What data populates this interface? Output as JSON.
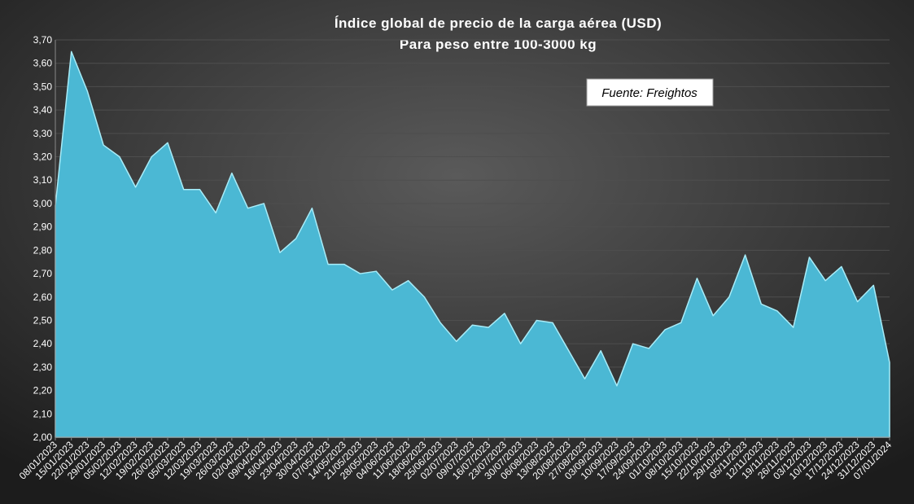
{
  "chart_data": {
    "type": "area",
    "title": "Índice global de precio de la carga aérea (USD)",
    "subtitle": "Para peso entre 100-3000 kg",
    "annotation": "Fuente: Freightos",
    "categories": [
      "08/01/2023",
      "15/01/2023",
      "22/01/2023",
      "29/01/2023",
      "05/02/2023",
      "12/02/2023",
      "19/02/2023",
      "26/02/2023",
      "05/03/2023",
      "12/03/2023",
      "19/03/2023",
      "26/03/2023",
      "02/04/2023",
      "09/04/2023",
      "16/04/2023",
      "23/04/2023",
      "30/04/2023",
      "07/05/2023",
      "14/05/2023",
      "21/05/2023",
      "28/05/2023",
      "04/06/2023",
      "11/06/2023",
      "18/06/2023",
      "25/06/2023",
      "02/07/2023",
      "09/07/2023",
      "16/07/2023",
      "23/07/2023",
      "30/07/2023",
      "06/08/2023",
      "13/08/2023",
      "20/08/2023",
      "27/08/2023",
      "03/09/2023",
      "10/09/2023",
      "17/09/2023",
      "24/09/2023",
      "01/10/2023",
      "08/10/2023",
      "15/10/2023",
      "22/10/2023",
      "29/10/2023",
      "05/11/2023",
      "12/11/2023",
      "19/11/2023",
      "26/11/2023",
      "03/12/2023",
      "10/12/2023",
      "17/12/2023",
      "24/12/2023",
      "31/12/2023",
      "07/01/2024"
    ],
    "series": [
      {
        "color": "#4bb8d4",
        "values": [
          2.99,
          3.65,
          3.48,
          3.25,
          3.2,
          3.07,
          3.2,
          3.26,
          3.06,
          3.06,
          2.96,
          3.13,
          2.98,
          3.0,
          2.79,
          2.85,
          2.98,
          2.74,
          2.74,
          2.7,
          2.71,
          2.63,
          2.67,
          2.6,
          2.49,
          2.41,
          2.48,
          2.47,
          2.53,
          2.4,
          2.5,
          2.49,
          2.37,
          2.25,
          2.37,
          2.22,
          2.4,
          2.38,
          2.46,
          2.49,
          2.68,
          2.52,
          2.6,
          2.78,
          2.57,
          2.54,
          2.47,
          2.77,
          2.67,
          2.73,
          2.58,
          2.65,
          2.32
        ]
      }
    ],
    "ylim": [
      2.0,
      3.7
    ],
    "yticks": [
      {
        "value": 2.0,
        "label": "2,00"
      },
      {
        "value": 2.1,
        "label": "2,10"
      },
      {
        "value": 2.2,
        "label": "2,20"
      },
      {
        "value": 2.3,
        "label": "2,30"
      },
      {
        "value": 2.4,
        "label": "2,40"
      },
      {
        "value": 2.5,
        "label": "2,50"
      },
      {
        "value": 2.6,
        "label": "2,60"
      },
      {
        "value": 2.7,
        "label": "2,70"
      },
      {
        "value": 2.8,
        "label": "2,80"
      },
      {
        "value": 2.9,
        "label": "2,90"
      },
      {
        "value": 3.0,
        "label": "3,00"
      },
      {
        "value": 3.1,
        "label": "3,10"
      },
      {
        "value": 3.2,
        "label": "3,20"
      },
      {
        "value": 3.3,
        "label": "3,30"
      },
      {
        "value": 3.4,
        "label": "3,40"
      },
      {
        "value": 3.5,
        "label": "3,50"
      },
      {
        "value": 3.6,
        "label": "3,60"
      },
      {
        "value": 3.7,
        "label": "3,70"
      }
    ],
    "grid": true
  }
}
